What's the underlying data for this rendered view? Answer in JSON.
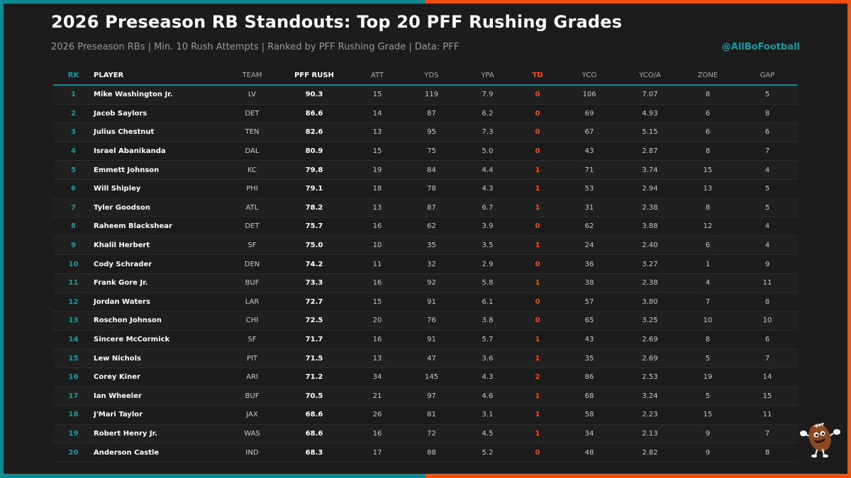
{
  "title": "2026 Preseason RB Standouts: Top 20 PFF Rushing Grades",
  "subtitle": "2026 Preseason RBs | Min. 10 Rush Attempts | Ranked by PFF Rushing Grade | Data: PFF",
  "handle": "@AllBoFootball",
  "colors": {
    "accent_teal": "#0f8a93",
    "accent_orange": "#f24f12",
    "background": "#1c1c1c"
  },
  "mascot_icon": "football-mascot-icon",
  "chart_data": {
    "type": "table",
    "columns": [
      "RK",
      "PLAYER",
      "TEAM",
      "PFF RUSH",
      "ATT",
      "YDS",
      "YPA",
      "TD",
      "YCO",
      "YCO/A",
      "ZONE",
      "GAP"
    ],
    "rows": [
      [
        "1",
        "Mike Washington Jr.",
        "LV",
        "90.3",
        "15",
        "119",
        "7.9",
        "0",
        "106",
        "7.07",
        "8",
        "5"
      ],
      [
        "2",
        "Jacob Saylors",
        "DET",
        "86.6",
        "14",
        "87",
        "6.2",
        "0",
        "69",
        "4.93",
        "6",
        "8"
      ],
      [
        "3",
        "Julius Chestnut",
        "TEN",
        "82.6",
        "13",
        "95",
        "7.3",
        "0",
        "67",
        "5.15",
        "6",
        "6"
      ],
      [
        "4",
        "Israel Abanikanda",
        "DAL",
        "80.9",
        "15",
        "75",
        "5.0",
        "0",
        "43",
        "2.87",
        "8",
        "7"
      ],
      [
        "5",
        "Emmett Johnson",
        "KC",
        "79.8",
        "19",
        "84",
        "4.4",
        "1",
        "71",
        "3.74",
        "15",
        "4"
      ],
      [
        "6",
        "Will Shipley",
        "PHI",
        "79.1",
        "18",
        "78",
        "4.3",
        "1",
        "53",
        "2.94",
        "13",
        "5"
      ],
      [
        "7",
        "Tyler Goodson",
        "ATL",
        "78.2",
        "13",
        "87",
        "6.7",
        "1",
        "31",
        "2.38",
        "8",
        "5"
      ],
      [
        "8",
        "Raheem Blackshear",
        "DET",
        "75.7",
        "16",
        "62",
        "3.9",
        "0",
        "62",
        "3.88",
        "12",
        "4"
      ],
      [
        "9",
        "Khalil Herbert",
        "SF",
        "75.0",
        "10",
        "35",
        "3.5",
        "1",
        "24",
        "2.40",
        "6",
        "4"
      ],
      [
        "10",
        "Cody Schrader",
        "DEN",
        "74.2",
        "11",
        "32",
        "2.9",
        "0",
        "36",
        "3.27",
        "1",
        "9"
      ],
      [
        "11",
        "Frank Gore Jr.",
        "BUF",
        "73.3",
        "16",
        "92",
        "5.8",
        "1",
        "38",
        "2.38",
        "4",
        "11"
      ],
      [
        "12",
        "Jordan Waters",
        "LAR",
        "72.7",
        "15",
        "91",
        "6.1",
        "0",
        "57",
        "3.80",
        "7",
        "8"
      ],
      [
        "13",
        "Roschon Johnson",
        "CHI",
        "72.5",
        "20",
        "76",
        "3.8",
        "0",
        "65",
        "3.25",
        "10",
        "10"
      ],
      [
        "14",
        "Sincere McCormick",
        "SF",
        "71.7",
        "16",
        "91",
        "5.7",
        "1",
        "43",
        "2.69",
        "8",
        "6"
      ],
      [
        "15",
        "Lew Nichols",
        "PIT",
        "71.5",
        "13",
        "47",
        "3.6",
        "1",
        "35",
        "2.69",
        "5",
        "7"
      ],
      [
        "16",
        "Corey Kiner",
        "ARI",
        "71.2",
        "34",
        "145",
        "4.3",
        "2",
        "86",
        "2.53",
        "19",
        "14"
      ],
      [
        "17",
        "Ian Wheeler",
        "BUF",
        "70.5",
        "21",
        "97",
        "4.6",
        "1",
        "68",
        "3.24",
        "5",
        "15"
      ],
      [
        "18",
        "J'Mari Taylor",
        "JAX",
        "68.6",
        "26",
        "81",
        "3.1",
        "1",
        "58",
        "2.23",
        "15",
        "11"
      ],
      [
        "19",
        "Robert Henry Jr.",
        "WAS",
        "68.6",
        "16",
        "72",
        "4.5",
        "1",
        "34",
        "2.13",
        "9",
        "7"
      ],
      [
        "20",
        "Anderson Castle",
        "IND",
        "68.3",
        "17",
        "88",
        "5.2",
        "0",
        "48",
        "2.82",
        "9",
        "8"
      ]
    ]
  }
}
